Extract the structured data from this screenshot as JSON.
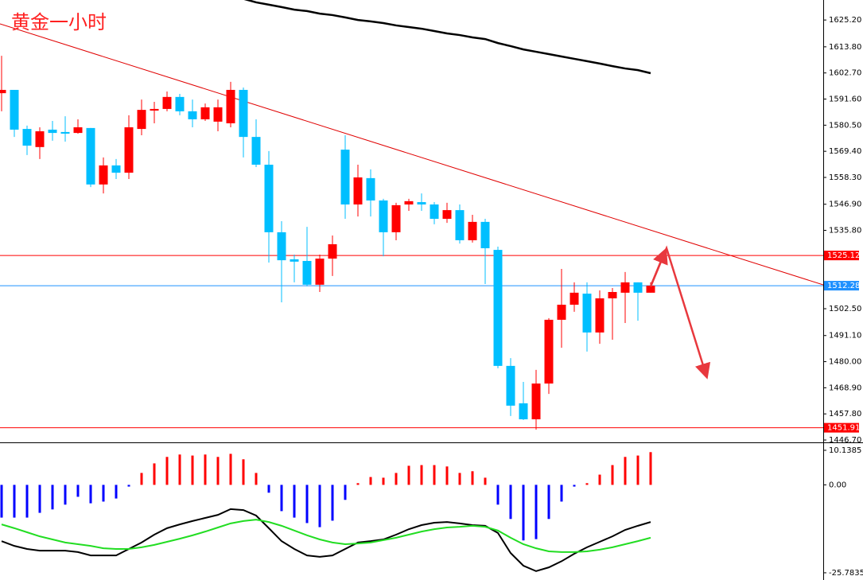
{
  "chart_data": [
    {
      "type": "candlestick",
      "title": "黄金一小时",
      "open": [
        1594.1,
        1595.5,
        1578.9,
        1571.2,
        1578.6,
        1577.6,
        1577.2,
        1579.3,
        1555.3,
        1563.4,
        1560.3,
        1578.9,
        1586.7,
        1587.4,
        1592.5,
        1586.4,
        1583.0,
        1582.0,
        1581.3,
        1595.5,
        1575.5,
        1563.7,
        1535.0,
        1523.5,
        1522.8,
        1512.7,
        1523.8,
        1570.1,
        1546.8,
        1558.0,
        1548.5,
        1535.0,
        1546.8,
        1547.8,
        1546.8,
        1540.7,
        1544.4,
        1531.6,
        1539.4,
        1527.5,
        1478.2,
        1462.3,
        1455.5,
        1470.7,
        1497.8,
        1504.2,
        1508.9,
        1492.4,
        1506.9,
        1509.3,
        1513.7,
        1509.3
      ],
      "high": [
        1610.0,
        1595.5,
        1580.3,
        1579.6,
        1582.3,
        1584.3,
        1583.0,
        1579.3,
        1566.8,
        1566.1,
        1584.7,
        1591.4,
        1590.4,
        1594.8,
        1593.8,
        1591.4,
        1589.7,
        1591.4,
        1598.9,
        1596.5,
        1583.0,
        1569.5,
        1539.7,
        1525.5,
        1537.3,
        1525.5,
        1533.6,
        1576.2,
        1563.7,
        1561.7,
        1549.2,
        1547.5,
        1549.2,
        1551.5,
        1547.8,
        1547.5,
        1546.8,
        1542.4,
        1540.7,
        1528.9,
        1481.5,
        1471.4,
        1476.5,
        1498.5,
        1519.4,
        1513.7,
        1513.7,
        1510.3,
        1511.3,
        1518.1,
        1513.7,
        1513.7
      ],
      "low": [
        1586.4,
        1575.5,
        1567.8,
        1566.1,
        1573.9,
        1573.5,
        1576.9,
        1554.2,
        1551.5,
        1557.6,
        1557.6,
        1576.2,
        1581.3,
        1586.4,
        1584.7,
        1579.6,
        1582.3,
        1577.9,
        1579.6,
        1566.8,
        1562.7,
        1522.1,
        1505.2,
        1513.7,
        1512.0,
        1509.6,
        1516.4,
        1540.7,
        1541.7,
        1541.7,
        1524.8,
        1531.6,
        1544.1,
        1544.1,
        1538.4,
        1539.0,
        1530.2,
        1530.6,
        1513.0,
        1477.2,
        1456.9,
        1455.2,
        1451.1,
        1466.3,
        1485.9,
        1501.2,
        1484.3,
        1487.6,
        1489.3,
        1496.4,
        1497.4,
        1509.3
      ],
      "close": [
        1595.5,
        1578.6,
        1571.8,
        1577.9,
        1577.2,
        1576.9,
        1579.6,
        1555.3,
        1563.4,
        1560.3,
        1579.6,
        1587.0,
        1587.4,
        1592.5,
        1586.4,
        1583.0,
        1588.1,
        1588.1,
        1595.5,
        1575.5,
        1563.7,
        1535.0,
        1523.1,
        1522.5,
        1512.7,
        1523.8,
        1529.9,
        1546.8,
        1558.3,
        1548.5,
        1535.0,
        1546.5,
        1548.2,
        1546.8,
        1540.7,
        1544.4,
        1531.6,
        1539.4,
        1528.2,
        1478.2,
        1461.3,
        1455.5,
        1470.7,
        1497.8,
        1504.2,
        1509.3,
        1492.4,
        1506.9,
        1509.6,
        1513.7,
        1509.3,
        1512.3
      ],
      "up_color": "#ff0000",
      "down_color": "#00bfff",
      "ma": {
        "color": "#000000",
        "values": [
          null,
          null,
          null,
          null,
          null,
          null,
          null,
          null,
          null,
          null,
          null,
          null,
          null,
          null,
          null,
          null,
          null,
          null,
          null,
          1634.2,
          1632.7,
          1631.7,
          1630.7,
          1629.6,
          1629.0,
          1627.9,
          1627.3,
          1626.3,
          1625.2,
          1624.6,
          1623.9,
          1622.9,
          1622.2,
          1621.5,
          1620.5,
          1619.5,
          1618.8,
          1617.8,
          1617.1,
          1615.4,
          1614.1,
          1612.7,
          1611.7,
          1610.7,
          1609.7,
          1608.7,
          1607.7,
          1606.7,
          1605.6,
          1604.6,
          1603.9,
          1602.6
        ]
      },
      "hlines": [
        {
          "value": 1525.12,
          "color": "#ff0000"
        },
        {
          "value": 1512.28,
          "color": "#1e90ff"
        },
        {
          "value": 1451.91,
          "color": "#ff0000"
        }
      ],
      "ylim": [
        1445.7,
        1633.7
      ],
      "yticks": [
        {
          "value": 1625.2,
          "label": "1625.20"
        },
        {
          "value": 1613.8,
          "label": "1613.80"
        },
        {
          "value": 1602.7,
          "label": "1602.70"
        },
        {
          "value": 1591.6,
          "label": "1591.60"
        },
        {
          "value": 1580.5,
          "label": "1580.50"
        },
        {
          "value": 1569.4,
          "label": "1569.40"
        },
        {
          "value": 1558.3,
          "label": "1558.30"
        },
        {
          "value": 1546.9,
          "label": "1546.90"
        },
        {
          "value": 1535.8,
          "label": "1535.80"
        },
        {
          "value": 1502.5,
          "label": "1502.50"
        },
        {
          "value": 1491.1,
          "label": "1491.10"
        },
        {
          "value": 1480.0,
          "label": "1480.00"
        },
        {
          "value": 1468.9,
          "label": "1468.90"
        },
        {
          "value": 1457.8,
          "label": "1457.80"
        },
        {
          "value": 1446.7,
          "label": "1446.70"
        }
      ]
    },
    {
      "type": "bar",
      "values": [
        -9.6,
        -9.6,
        -9.6,
        -8.2,
        -7.2,
        -5.8,
        -3.5,
        -5.4,
        -4.9,
        -4.0,
        -0.5,
        3.5,
        6.3,
        8.2,
        8.9,
        8.6,
        8.9,
        8.2,
        9.1,
        7.5,
        3.5,
        -2.3,
        -7.7,
        -9.6,
        -11.2,
        -12.4,
        -10.5,
        -4.4,
        0.5,
        2.3,
        2.1,
        3.5,
        5.6,
        5.8,
        5.8,
        5.4,
        3.5,
        4.0,
        2.1,
        -5.8,
        -10.0,
        -16.3,
        -15.9,
        -10.0,
        -4.9,
        -0.5,
        0.5,
        3.0,
        5.8,
        8.2,
        8.6,
        9.6
      ],
      "positive_color": "#ff0000",
      "negative_color": "#0000ff",
      "lines": [
        {
          "color": "#000000",
          "values": [
            -16.5,
            -17.9,
            -18.8,
            -19.3,
            -19.3,
            -19.3,
            -19.7,
            -20.7,
            -20.7,
            -20.7,
            -18.8,
            -16.9,
            -14.6,
            -12.7,
            -11.6,
            -10.6,
            -9.7,
            -8.8,
            -7.1,
            -7.4,
            -9.0,
            -12.7,
            -16.5,
            -18.8,
            -20.7,
            -21.1,
            -20.7,
            -18.8,
            -16.9,
            -16.5,
            -16.0,
            -14.6,
            -13.0,
            -11.8,
            -11.1,
            -10.9,
            -11.3,
            -11.8,
            -12.0,
            -14.1,
            -20.0,
            -23.7,
            -25.3,
            -24.2,
            -22.4,
            -20.2,
            -18.3,
            -16.7,
            -15.1,
            -13.2,
            -12.0,
            -10.9
          ]
        },
        {
          "color": "#22dd22",
          "values": [
            -11.6,
            -12.7,
            -13.9,
            -15.1,
            -16.0,
            -16.9,
            -17.4,
            -17.9,
            -18.6,
            -18.8,
            -18.8,
            -18.3,
            -17.6,
            -16.7,
            -15.8,
            -14.8,
            -13.7,
            -12.5,
            -11.3,
            -10.6,
            -10.2,
            -10.9,
            -12.0,
            -13.4,
            -14.8,
            -16.0,
            -16.9,
            -17.4,
            -17.2,
            -16.9,
            -16.2,
            -15.5,
            -14.6,
            -13.7,
            -13.0,
            -12.5,
            -12.3,
            -12.0,
            -12.3,
            -13.4,
            -15.5,
            -17.4,
            -18.6,
            -19.5,
            -19.7,
            -19.7,
            -19.5,
            -19.0,
            -18.3,
            -17.4,
            -16.5,
            -15.5
          ]
        }
      ],
      "ylim": [
        -27.9,
        12.0
      ],
      "yticks": [
        10.1385,
        {
          "value": 0,
          "label": "0.00"
        },
        -25.7835
      ]
    }
  ]
}
